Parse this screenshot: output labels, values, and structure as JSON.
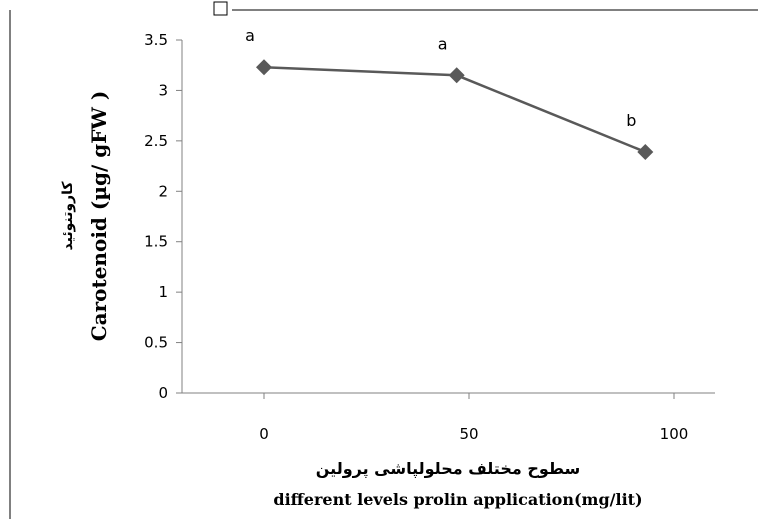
{
  "chart_data": {
    "type": "line",
    "x": [
      0,
      47,
      93
    ],
    "values": [
      3.23,
      3.15,
      2.39
    ],
    "point_labels": [
      "a",
      "a",
      "b"
    ],
    "x_ticks": [
      0,
      50,
      100
    ],
    "x_tick_labels": [
      "0",
      "50",
      "100"
    ],
    "y_ticks": [
      0,
      0.5,
      1,
      1.5,
      2,
      2.5,
      3,
      3.5
    ],
    "y_tick_labels": [
      "0",
      "0.5",
      "1",
      "1.5",
      "2",
      "2.5",
      "3",
      "3.5"
    ],
    "xlim": [
      -20,
      110
    ],
    "ylim": [
      0,
      3.5
    ],
    "xlabel_fa": "سطوح مختلف  محلولپاشی پرولین",
    "xlabel_en": "different  levels prolin  application(mg/lit)",
    "ylabel_fa": "کاروتنوئید",
    "ylabel_en": "Carotenoid  (µg/  gFW )",
    "grid": false,
    "legend": "none",
    "line_color": "#595959",
    "marker_color": "#595959"
  }
}
